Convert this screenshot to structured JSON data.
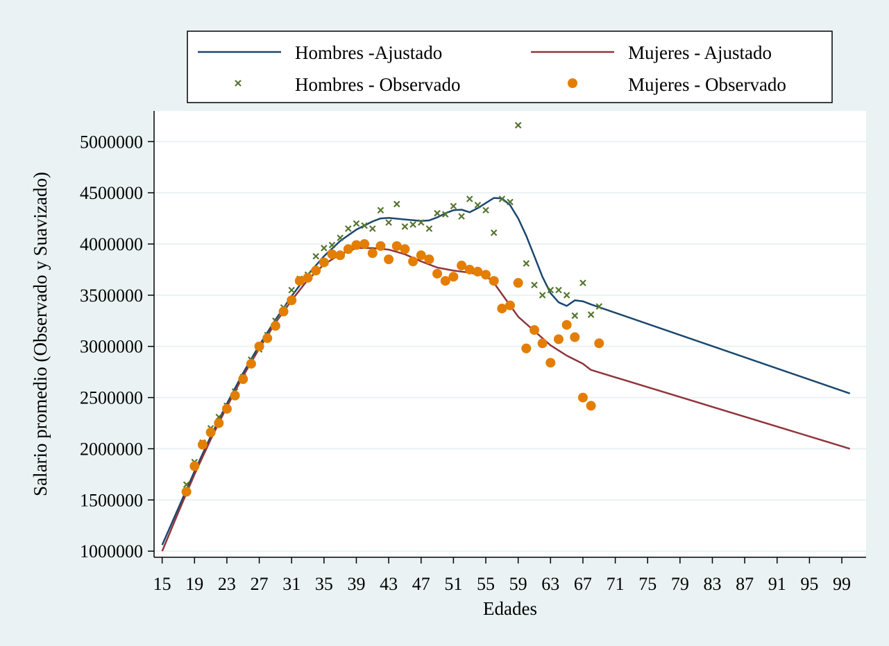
{
  "chart_data": {
    "type": "line",
    "title": "",
    "xlabel": "Edades",
    "ylabel": "Salario promedio (Observado y Suavizado)",
    "xlim": [
      14,
      102
    ],
    "ylim": [
      940000,
      5300000
    ],
    "x_ticks": [
      15,
      19,
      23,
      27,
      31,
      35,
      39,
      43,
      47,
      51,
      55,
      59,
      63,
      67,
      71,
      75,
      79,
      83,
      87,
      91,
      95,
      99
    ],
    "x_tick_labels": [
      "15",
      "19",
      "23",
      "27",
      "31",
      "35",
      "39",
      "43",
      "47",
      "51",
      "55",
      "59",
      "63",
      "67",
      "71",
      "75",
      "79",
      "83",
      "87",
      "91",
      "95",
      "99"
    ],
    "y_ticks": [
      1000000,
      1500000,
      2000000,
      2500000,
      3000000,
      3500000,
      4000000,
      4500000,
      5000000
    ],
    "y_tick_labels": [
      "1000000",
      "1500000",
      "2000000",
      "2500000",
      "3000000",
      "3500000",
      "4000000",
      "4500000",
      "5000000"
    ],
    "grid": true,
    "legend": {
      "position": "top",
      "entries": [
        {
          "label": "Hombres -Ajustado",
          "kind": "line",
          "color": "#1a476f"
        },
        {
          "label": "Mujeres - Ajustado",
          "kind": "line",
          "color": "#90353b"
        },
        {
          "label": "Hombres - Observado",
          "kind": "x-marker",
          "color": "#55752f"
        },
        {
          "label": "Mujeres - Observado",
          "kind": "circle-marker",
          "color": "#e37e00"
        }
      ]
    },
    "series": [
      {
        "name": "Hombres -Ajustado",
        "kind": "line",
        "color": "#1a476f",
        "points": [
          [
            15,
            1060000
          ],
          [
            17,
            1420000
          ],
          [
            19,
            1780000
          ],
          [
            21,
            2120000
          ],
          [
            23,
            2440000
          ],
          [
            25,
            2740000
          ],
          [
            27,
            3010000
          ],
          [
            29,
            3260000
          ],
          [
            31,
            3490000
          ],
          [
            33,
            3700000
          ],
          [
            35,
            3880000
          ],
          [
            37,
            4030000
          ],
          [
            39,
            4140000
          ],
          [
            41,
            4220000
          ],
          [
            42,
            4250000
          ],
          [
            43,
            4255000
          ],
          [
            45,
            4240000
          ],
          [
            47,
            4225000
          ],
          [
            48,
            4230000
          ],
          [
            49,
            4260000
          ],
          [
            50,
            4300000
          ],
          [
            51,
            4330000
          ],
          [
            52,
            4335000
          ],
          [
            53,
            4310000
          ],
          [
            54,
            4350000
          ],
          [
            55,
            4400000
          ],
          [
            56,
            4450000
          ],
          [
            57,
            4445000
          ],
          [
            58,
            4380000
          ],
          [
            59,
            4250000
          ],
          [
            60,
            4080000
          ],
          [
            61,
            3880000
          ],
          [
            62,
            3680000
          ],
          [
            63,
            3520000
          ],
          [
            64,
            3430000
          ],
          [
            65,
            3395000
          ],
          [
            66,
            3450000
          ],
          [
            67,
            3440000
          ],
          [
            68,
            3410000
          ],
          [
            100,
            2540000
          ]
        ]
      },
      {
        "name": "Mujeres - Ajustado",
        "kind": "line",
        "color": "#90353b",
        "points": [
          [
            15,
            1000000
          ],
          [
            17,
            1380000
          ],
          [
            19,
            1750000
          ],
          [
            21,
            2090000
          ],
          [
            23,
            2410000
          ],
          [
            25,
            2710000
          ],
          [
            27,
            2980000
          ],
          [
            29,
            3230000
          ],
          [
            31,
            3450000
          ],
          [
            33,
            3650000
          ],
          [
            35,
            3800000
          ],
          [
            37,
            3900000
          ],
          [
            39,
            3960000
          ],
          [
            41,
            3960000
          ],
          [
            43,
            3945000
          ],
          [
            45,
            3900000
          ],
          [
            47,
            3830000
          ],
          [
            49,
            3770000
          ],
          [
            51,
            3740000
          ],
          [
            53,
            3720000
          ],
          [
            55,
            3690000
          ],
          [
            56,
            3620000
          ],
          [
            57,
            3510000
          ],
          [
            58,
            3400000
          ],
          [
            59,
            3290000
          ],
          [
            61,
            3150000
          ],
          [
            63,
            3010000
          ],
          [
            65,
            2910000
          ],
          [
            67,
            2830000
          ],
          [
            68,
            2770000
          ],
          [
            100,
            2000000
          ]
        ]
      },
      {
        "name": "Hombres - Observado",
        "kind": "scatter-x",
        "color": "#55752f",
        "points": [
          [
            18,
            1650000
          ],
          [
            19,
            1870000
          ],
          [
            20,
            2060000
          ],
          [
            21,
            2200000
          ],
          [
            22,
            2310000
          ],
          [
            23,
            2420000
          ],
          [
            24,
            2560000
          ],
          [
            25,
            2700000
          ],
          [
            26,
            2870000
          ],
          [
            27,
            2970000
          ],
          [
            28,
            3110000
          ],
          [
            29,
            3250000
          ],
          [
            30,
            3380000
          ],
          [
            31,
            3550000
          ],
          [
            32,
            3660000
          ],
          [
            33,
            3700000
          ],
          [
            34,
            3880000
          ],
          [
            35,
            3960000
          ],
          [
            36,
            3990000
          ],
          [
            37,
            4060000
          ],
          [
            38,
            4150000
          ],
          [
            39,
            4200000
          ],
          [
            40,
            4180000
          ],
          [
            41,
            4150000
          ],
          [
            42,
            4330000
          ],
          [
            43,
            4210000
          ],
          [
            44,
            4390000
          ],
          [
            45,
            4170000
          ],
          [
            46,
            4190000
          ],
          [
            47,
            4210000
          ],
          [
            48,
            4150000
          ],
          [
            49,
            4300000
          ],
          [
            50,
            4290000
          ],
          [
            51,
            4370000
          ],
          [
            52,
            4270000
          ],
          [
            53,
            4440000
          ],
          [
            54,
            4380000
          ],
          [
            55,
            4330000
          ],
          [
            56,
            4110000
          ],
          [
            57,
            4440000
          ],
          [
            58,
            4410000
          ],
          [
            59,
            5160000
          ],
          [
            60,
            3810000
          ],
          [
            61,
            3600000
          ],
          [
            62,
            3500000
          ],
          [
            63,
            3550000
          ],
          [
            64,
            3550000
          ],
          [
            65,
            3500000
          ],
          [
            66,
            3300000
          ],
          [
            67,
            3620000
          ],
          [
            68,
            3310000
          ],
          [
            69,
            3390000
          ]
        ]
      },
      {
        "name": "Mujeres - Observado",
        "kind": "scatter-circle",
        "color": "#e37e00",
        "points": [
          [
            18,
            1580000
          ],
          [
            19,
            1830000
          ],
          [
            20,
            2040000
          ],
          [
            21,
            2160000
          ],
          [
            22,
            2250000
          ],
          [
            23,
            2390000
          ],
          [
            24,
            2520000
          ],
          [
            25,
            2680000
          ],
          [
            26,
            2830000
          ],
          [
            27,
            3000000
          ],
          [
            28,
            3080000
          ],
          [
            29,
            3200000
          ],
          [
            30,
            3340000
          ],
          [
            31,
            3450000
          ],
          [
            32,
            3640000
          ],
          [
            33,
            3670000
          ],
          [
            34,
            3740000
          ],
          [
            35,
            3820000
          ],
          [
            36,
            3900000
          ],
          [
            37,
            3890000
          ],
          [
            38,
            3950000
          ],
          [
            39,
            3990000
          ],
          [
            40,
            4000000
          ],
          [
            41,
            3910000
          ],
          [
            42,
            3980000
          ],
          [
            43,
            3850000
          ],
          [
            44,
            3980000
          ],
          [
            45,
            3950000
          ],
          [
            46,
            3830000
          ],
          [
            47,
            3890000
          ],
          [
            48,
            3850000
          ],
          [
            49,
            3710000
          ],
          [
            50,
            3640000
          ],
          [
            51,
            3680000
          ],
          [
            52,
            3790000
          ],
          [
            53,
            3750000
          ],
          [
            54,
            3730000
          ],
          [
            55,
            3700000
          ],
          [
            56,
            3640000
          ],
          [
            57,
            3370000
          ],
          [
            58,
            3400000
          ],
          [
            59,
            3620000
          ],
          [
            60,
            2980000
          ],
          [
            61,
            3160000
          ],
          [
            62,
            3030000
          ],
          [
            63,
            2840000
          ],
          [
            64,
            3070000
          ],
          [
            65,
            3210000
          ],
          [
            66,
            3090000
          ],
          [
            67,
            2500000
          ],
          [
            68,
            2420000
          ],
          [
            69,
            3030000
          ]
        ]
      }
    ]
  }
}
